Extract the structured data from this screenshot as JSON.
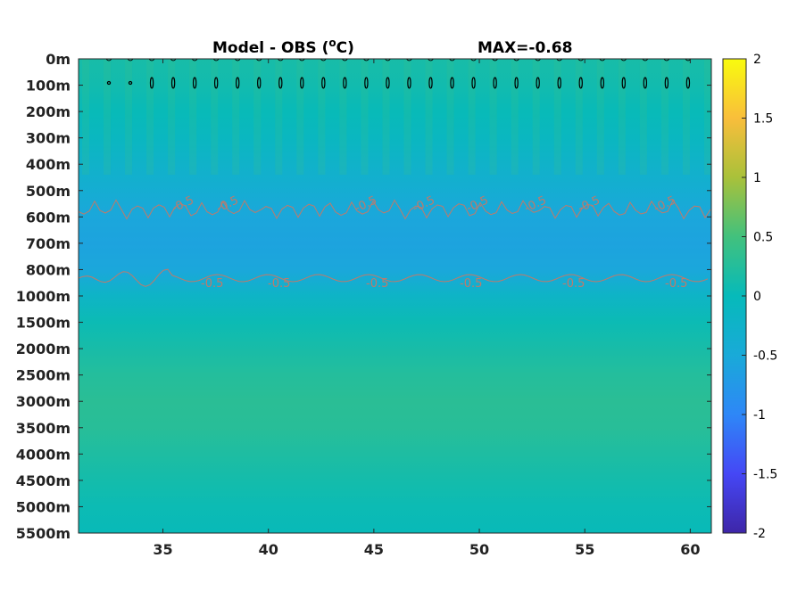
{
  "chart_data": {
    "type": "heatmap",
    "title_left": "Model - OBS (",
    "title_unit_sup": "o",
    "title_unit_tail": "C)",
    "title_right": "MAX=-0.68",
    "x": {
      "ticks": [
        35,
        40,
        45,
        50,
        55,
        60
      ],
      "range": [
        31,
        61
      ]
    },
    "y": {
      "labels": [
        "0m",
        "100m",
        "200m",
        "300m",
        "400m",
        "500m",
        "600m",
        "700m",
        "800m",
        "1000m",
        "1500m",
        "2000m",
        "2500m",
        "3000m",
        "3500m",
        "4000m",
        "4500m",
        "5000m",
        "5500m"
      ]
    },
    "colorbar": {
      "range": [
        -2,
        2
      ],
      "ticks": [
        "2",
        "1.5",
        "1",
        "0.5",
        "0",
        "-0.5",
        "-1",
        "-1.5",
        "-2"
      ]
    },
    "contours": [
      {
        "level": "-0.5",
        "color": "#c07a6a"
      },
      {
        "level": "0",
        "color": "#000000"
      }
    ],
    "contour_labels": [
      "-0.5",
      "-0.5",
      "-0.5",
      "-0.5",
      "-0.5",
      "-0.5",
      "-0.5",
      "-0.5",
      "-0.5",
      "-0.5"
    ],
    "profile": [
      {
        "depth": "0m",
        "value": 0.15
      },
      {
        "depth": "100m",
        "value": 0.1
      },
      {
        "depth": "200m",
        "value": 0.02
      },
      {
        "depth": "300m",
        "value": -0.1
      },
      {
        "depth": "400m",
        "value": -0.25
      },
      {
        "depth": "500m",
        "value": -0.4
      },
      {
        "depth": "600m",
        "value": -0.55
      },
      {
        "depth": "700m",
        "value": -0.6
      },
      {
        "depth": "800m",
        "value": -0.55
      },
      {
        "depth": "1000m",
        "value": -0.2
      },
      {
        "depth": "1500m",
        "value": 0.05
      },
      {
        "depth": "2000m",
        "value": 0.15
      },
      {
        "depth": "2500m",
        "value": 0.25
      },
      {
        "depth": "3000m",
        "value": 0.3
      },
      {
        "depth": "3500m",
        "value": 0.28
      },
      {
        "depth": "4000m",
        "value": 0.2
      },
      {
        "depth": "4500m",
        "value": 0.12
      },
      {
        "depth": "5000m",
        "value": 0.05
      },
      {
        "depth": "5500m",
        "value": 0.02
      }
    ]
  }
}
